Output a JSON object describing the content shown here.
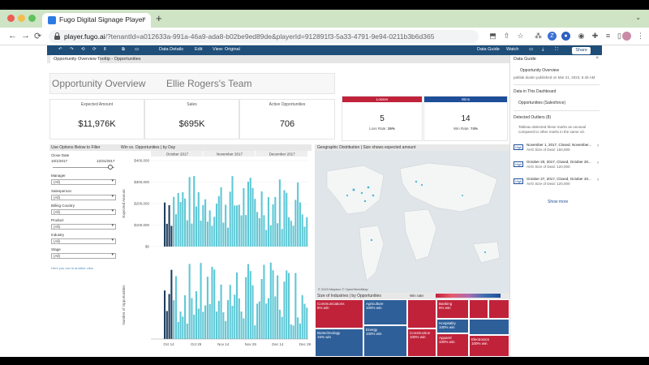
{
  "browser": {
    "tab_title": "Fugo Digital Signage Player",
    "tab_close": "×",
    "new_tab": "+",
    "url_host": "player.fugo.ai",
    "url_rest": "/?tenantId=a012633a-991a-46a9-ada8-b02be9ed89de&playerId=912891f3-5a33-4791-9e94-0211b3b6d365",
    "back": "←",
    "forward": "→",
    "reload": "C",
    "profile_initial": "Z"
  },
  "tableau_toolbar": {
    "data_details": "Data Details",
    "edit": "Edit",
    "view": "View: Original",
    "data_guide": "Data Guide",
    "watch": "Watch",
    "share": "Share"
  },
  "sheet_tabs": [
    "Opportunity Overview",
    "Tooltip - Opportunities"
  ],
  "dashboard": {
    "title": "Opportunity Overview",
    "team": "Ellie Rogers's Team",
    "kpis": [
      {
        "label": "Expected Amount",
        "value": "$11,976K"
      },
      {
        "label": "Sales",
        "value": "$695K"
      },
      {
        "label": "Active Opportunities",
        "value": "706"
      }
    ],
    "losses": {
      "label": "Losses",
      "value": "5",
      "rate_label": "Loss Rate:",
      "rate": "26%",
      "color": "#c0223a"
    },
    "wins": {
      "label": "Wins",
      "value": "14",
      "rate_label": "Win Rate:",
      "rate": "74%",
      "color": "#1f4e99"
    }
  },
  "filters": {
    "header": "Use Options Below to Filter",
    "close_date_label": "Close Date",
    "date_from": "10/1/2017",
    "date_to": "12/31/2017",
    "fields": [
      {
        "label": "Manager",
        "value": "(All)"
      },
      {
        "label": "Salesperson",
        "value": "(All)"
      },
      {
        "label": "Billing Country",
        "value": "(All)"
      },
      {
        "label": "Product",
        "value": "(All)"
      },
      {
        "label": "Industry",
        "value": "(All)"
      },
      {
        "label": "Stage",
        "value": "(All)"
      }
    ],
    "link": "Here you can in another view"
  },
  "win_chart": {
    "header": "Win vs. Opportunities | by Day",
    "months": [
      "October 2017",
      "November 2017",
      "December 2017"
    ],
    "y_top_ticks": [
      "$400,000",
      "$300,000",
      "$200,000",
      "$100,000",
      "$0"
    ],
    "y_top_label": "Expected Amount",
    "y_bottom_label": "Number of Opportunities",
    "x_ticks": [
      "Oct 14",
      "Oct 29",
      "Nov 14",
      "Nov 29",
      "Dec 14",
      "Dec 29"
    ],
    "bar_color": "#5ec8d6",
    "dark_bar_color": "#1f3f5f"
  },
  "map": {
    "header": "Geographic Distribution | Size shows expected amount",
    "credit": "© 2023 Mapbox © OpenStreetMap"
  },
  "treemap": {
    "header": "Size of Industries | by Opportunities",
    "winrate_label": "Win rate:",
    "tiles": [
      {
        "name": "Communications",
        "sub": "5% win"
      },
      {
        "name": "Biotechnology",
        "sub": "15% win"
      },
      {
        "name": "Agriculture",
        "sub": "100% win"
      },
      {
        "name": "Energy",
        "sub": "100% win"
      },
      {
        "name": "Banking",
        "sub": "5% win"
      },
      {
        "name": "Hospitality",
        "sub": "100% win"
      },
      {
        "name": "Construction",
        "sub": "100% win"
      },
      {
        "name": "Apparel",
        "sub": "100% win"
      },
      {
        "name": "Electronics",
        "sub": "100% win"
      }
    ]
  },
  "guide": {
    "title": "Data Guide",
    "close": "×",
    "dash_name": "Opportunity Overview",
    "author": "pahlak dunkn published on Mar 21, 2023, 6:45 AM",
    "in_dashboard": "Data in This Dashboard",
    "source": "Opportunities (Salesforce)",
    "outliers": "Detected Outliers (8)",
    "outliers_note_1": "Tableau detected these marks as unusual",
    "outliers_note_2": "compared to other marks in the same viz.",
    "items": [
      {
        "badge": "High",
        "title": "November 1, 2017, Closed, November...",
        "sub": "AVG Size of Deal: 150,000"
      },
      {
        "badge": "High",
        "title": "October 20, 2017, Closed, October 20...",
        "sub": "AVG Size of Deal: 120,000"
      },
      {
        "badge": "High",
        "title": "October 27, 2017, Closed, October 20...",
        "sub": "AVG Size of Deal: 120,000"
      }
    ],
    "show_more": "Show more"
  }
}
